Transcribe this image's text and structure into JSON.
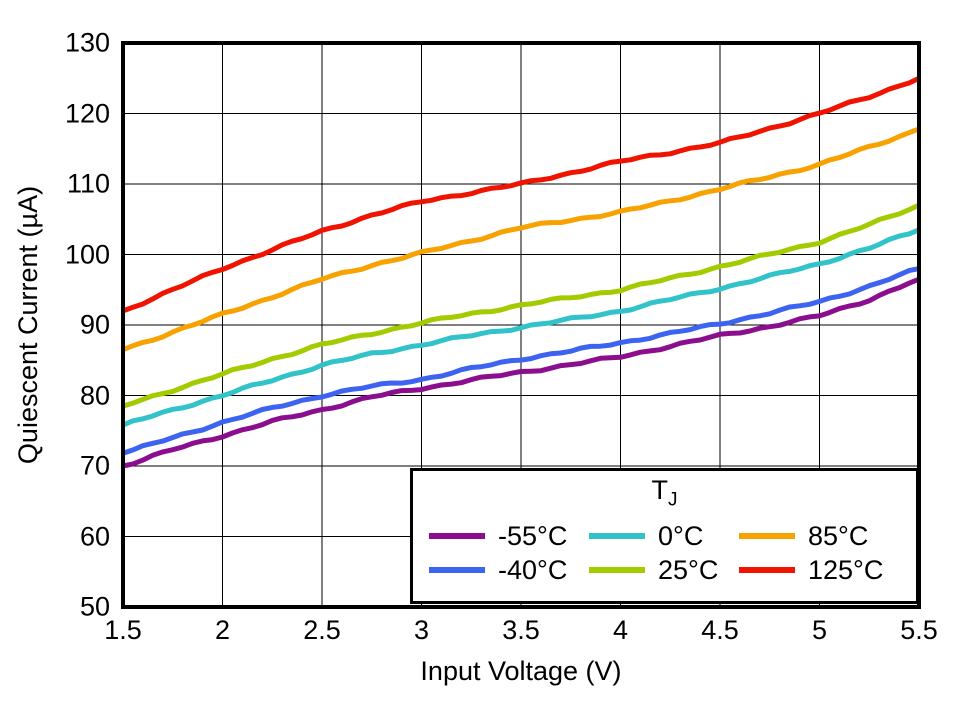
{
  "chart_data": {
    "type": "line",
    "title": "",
    "xlabel": "Input Voltage (V)",
    "ylabel": "Quiescent Current (µA)",
    "xlim": [
      1.5,
      5.5
    ],
    "ylim": [
      50,
      130
    ],
    "grid": true,
    "xticks": [
      1.5,
      2,
      2.5,
      3,
      3.5,
      4,
      4.5,
      5,
      5.5
    ],
    "xtick_labels": [
      "1.5",
      "2",
      "2.5",
      "3",
      "3.5",
      "4",
      "4.5",
      "5",
      "5.5"
    ],
    "yticks": [
      50,
      60,
      70,
      80,
      90,
      100,
      110,
      120,
      130
    ],
    "ytick_labels": [
      "50",
      "60",
      "70",
      "80",
      "90",
      "100",
      "110",
      "120",
      "130"
    ],
    "legend_title": {
      "main": "T",
      "sub": "J"
    },
    "legend_position": "lower right",
    "x": [
      1.5,
      1.75,
      2.0,
      2.25,
      2.5,
      2.75,
      3.0,
      3.25,
      3.5,
      3.75,
      4.0,
      4.25,
      4.5,
      4.75,
      5.0,
      5.25,
      5.5
    ],
    "series": [
      {
        "name": "-55°C",
        "color": "#8A0E8E",
        "values": [
          70.0,
          72.3,
          74.3,
          76.3,
          78.0,
          79.8,
          81.0,
          82.2,
          83.3,
          84.4,
          85.5,
          87.0,
          88.5,
          89.8,
          91.3,
          93.6,
          96.5
        ]
      },
      {
        "name": "-40°C",
        "color": "#3D64F0",
        "values": [
          71.8,
          74.0,
          76.2,
          78.2,
          80.0,
          81.3,
          82.3,
          83.8,
          85.2,
          86.3,
          87.5,
          88.8,
          90.2,
          91.7,
          93.3,
          95.5,
          98.0
        ]
      },
      {
        "name": "0°C",
        "color": "#31C3C9",
        "values": [
          75.8,
          78.0,
          80.0,
          82.2,
          84.3,
          85.9,
          87.2,
          88.5,
          89.7,
          90.8,
          92.0,
          93.6,
          95.2,
          96.9,
          98.7,
          100.9,
          103.5
        ]
      },
      {
        "name": "25°C",
        "color": "#A2CB00",
        "values": [
          78.5,
          80.8,
          83.0,
          85.2,
          87.2,
          88.8,
          90.3,
          91.6,
          92.8,
          93.9,
          95.0,
          96.6,
          98.3,
          100.0,
          101.8,
          104.2,
          107.0
        ]
      },
      {
        "name": "85°C",
        "color": "#F7A200",
        "values": [
          86.5,
          89.0,
          91.5,
          94.0,
          96.5,
          98.5,
          100.2,
          102.0,
          103.8,
          104.9,
          106.0,
          107.6,
          109.3,
          111.0,
          112.8,
          115.2,
          117.8
        ]
      },
      {
        "name": "125°C",
        "color": "#F01400",
        "values": [
          92.0,
          95.0,
          98.0,
          100.7,
          103.3,
          105.6,
          107.5,
          108.8,
          110.0,
          111.6,
          113.2,
          114.5,
          115.8,
          117.9,
          120.0,
          122.4,
          125.0
        ]
      }
    ]
  }
}
